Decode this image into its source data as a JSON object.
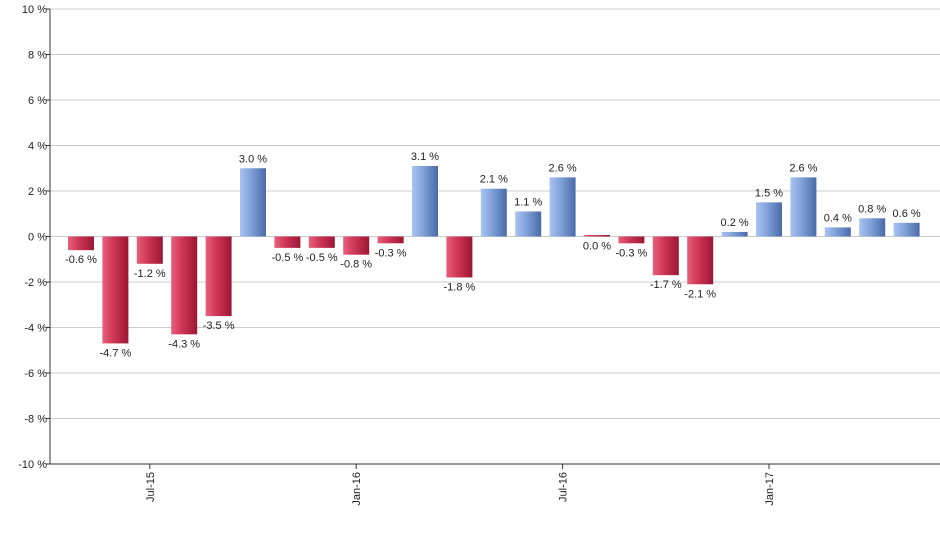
{
  "chart_data": {
    "type": "bar",
    "ylim": [
      -10,
      10
    ],
    "yticks": [
      10,
      8,
      6,
      4,
      2,
      0,
      -2,
      -4,
      -6,
      -8,
      -10
    ],
    "ytick_labels": [
      "10 %",
      "8 %",
      "6 %",
      "4 %",
      "2 %",
      "0 %",
      "-2 %",
      "-4 %",
      "-6 %",
      "-8 %",
      "-10 %"
    ],
    "xtick_labels": [
      {
        "label": "Jul-15",
        "index": 2
      },
      {
        "label": "Jan-16",
        "index": 8
      },
      {
        "label": "Jul-16",
        "index": 14
      },
      {
        "label": "Jan-17",
        "index": 20
      }
    ],
    "grid": true,
    "values": [
      -0.6,
      -4.7,
      -1.2,
      -4.3,
      -3.5,
      3.0,
      -0.5,
      -0.5,
      -0.8,
      -0.3,
      3.1,
      -1.8,
      2.1,
      1.1,
      2.6,
      0.0,
      -0.3,
      -1.7,
      -2.1,
      0.2,
      1.5,
      2.6,
      0.4,
      0.8,
      0.6
    ],
    "labels": [
      "-0.6 %",
      "-4.7 %",
      "-1.2 %",
      "-4.3 %",
      "-3.5 %",
      "3.0 %",
      "-0.5 %",
      "-0.5 %",
      "-0.8 %",
      "-0.3 %",
      "3.1 %",
      "-1.8 %",
      "2.1 %",
      "1.1 %",
      "2.6 %",
      "0.0 %",
      "-0.3 %",
      "-1.7 %",
      "-2.1 %",
      "0.2 %",
      "1.5 %",
      "2.6 %",
      "0.4 %",
      "0.8 %",
      "0.6 %"
    ],
    "colors": {
      "positive_light": "#a9c4f2",
      "positive_dark": "#4a6aa8",
      "negative_light": "#e8607c",
      "negative_dark": "#9c1634",
      "grid": "#cccccc",
      "axis": "#333333"
    }
  }
}
